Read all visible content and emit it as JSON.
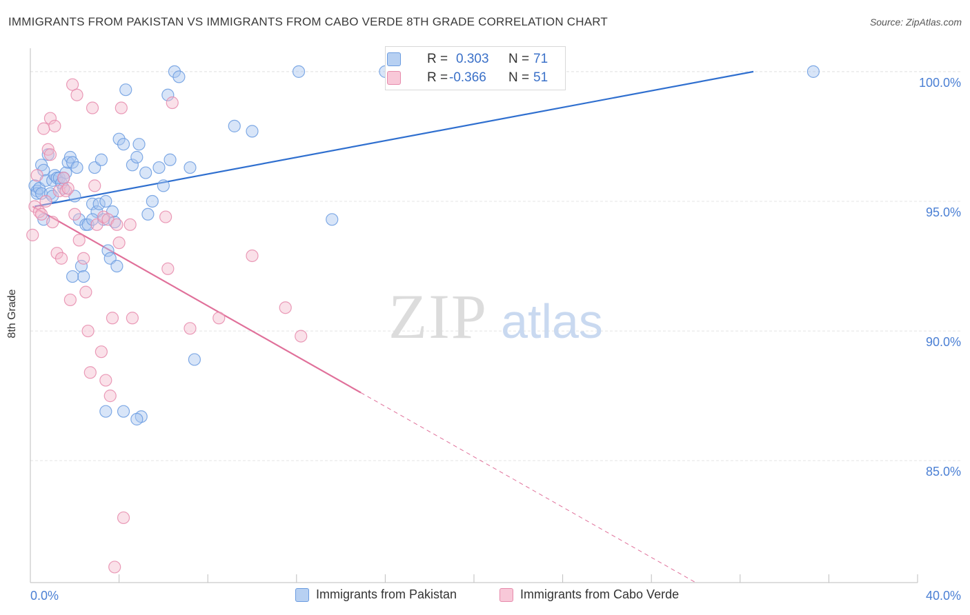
{
  "title": "IMMIGRANTS FROM PAKISTAN VS IMMIGRANTS FROM CABO VERDE 8TH GRADE CORRELATION CHART",
  "source": "Source: ZipAtlas.com",
  "watermark": {
    "zip": "ZIP",
    "atlas": "atlas"
  },
  "colors": {
    "blue": "#6a9be0",
    "blue_fill": "#a9c6f0",
    "pink": "#e68aab",
    "pink_fill": "#f5bccf",
    "blue_line": "#2f6fcf",
    "pink_line": "#e0709a",
    "tick_label": "#4a7fd4"
  },
  "legend": {
    "rows": [
      {
        "r_label": "R =",
        "r_value": "0.303",
        "n_label": "N =",
        "n_value": "71"
      },
      {
        "r_label": "R =",
        "r_value": "-0.366",
        "n_label": "N =",
        "n_value": "51"
      }
    ]
  },
  "bottom_legend": [
    "Immigrants from Pakistan",
    "Immigrants from Cabo Verde"
  ],
  "chart_data": {
    "type": "scatter",
    "title": "IMMIGRANTS FROM PAKISTAN VS IMMIGRANTS FROM CABO VERDE 8TH GRADE CORRELATION CHART",
    "xlabel": "",
    "ylabel": "8th Grade",
    "xlim": [
      0,
      40
    ],
    "ylim": [
      80.3,
      100.9
    ],
    "x_tick_labels": [
      "0.0%",
      "40.0%"
    ],
    "y_ticks": [
      85,
      90,
      95,
      100
    ],
    "y_tick_labels": [
      "85.0%",
      "90.0%",
      "95.0%",
      "100.0%"
    ],
    "series": [
      {
        "name": "Immigrants from Pakistan",
        "r": 0.303,
        "n": 71,
        "trend": {
          "x": [
            0.2,
            32.6
          ],
          "y": [
            94.8,
            100.0
          ],
          "solid_to": 32.6
        },
        "points": [
          [
            0.2,
            95.6
          ],
          [
            0.3,
            95.4
          ],
          [
            0.3,
            95.3
          ],
          [
            0.4,
            95.5
          ],
          [
            0.5,
            96.4
          ],
          [
            0.5,
            95.3
          ],
          [
            0.6,
            94.3
          ],
          [
            0.6,
            96.2
          ],
          [
            0.7,
            95.8
          ],
          [
            0.8,
            96.8
          ],
          [
            0.9,
            95.3
          ],
          [
            1.0,
            95.2
          ],
          [
            1.0,
            95.8
          ],
          [
            1.1,
            96.0
          ],
          [
            1.2,
            95.9
          ],
          [
            1.3,
            95.9
          ],
          [
            1.4,
            95.7
          ],
          [
            1.5,
            95.5
          ],
          [
            1.6,
            96.1
          ],
          [
            1.7,
            96.5
          ],
          [
            1.8,
            96.7
          ],
          [
            1.9,
            96.5
          ],
          [
            2.0,
            95.2
          ],
          [
            2.1,
            96.3
          ],
          [
            2.2,
            94.3
          ],
          [
            2.3,
            92.5
          ],
          [
            2.4,
            92.1
          ],
          [
            2.5,
            94.1
          ],
          [
            2.6,
            94.1
          ],
          [
            2.8,
            94.9
          ],
          [
            2.9,
            96.3
          ],
          [
            3.0,
            94.6
          ],
          [
            3.1,
            94.9
          ],
          [
            3.2,
            96.6
          ],
          [
            3.3,
            94.3
          ],
          [
            3.4,
            95.0
          ],
          [
            3.5,
            93.1
          ],
          [
            3.6,
            92.8
          ],
          [
            3.7,
            94.6
          ],
          [
            3.8,
            94.2
          ],
          [
            3.9,
            92.5
          ],
          [
            4.0,
            97.4
          ],
          [
            4.2,
            97.2
          ],
          [
            4.3,
            99.3
          ],
          [
            4.6,
            96.4
          ],
          [
            4.8,
            96.7
          ],
          [
            4.9,
            97.2
          ],
          [
            5.0,
            86.7
          ],
          [
            5.2,
            96.1
          ],
          [
            5.3,
            94.5
          ],
          [
            5.5,
            95.0
          ],
          [
            5.8,
            96.3
          ],
          [
            6.0,
            95.6
          ],
          [
            6.2,
            99.1
          ],
          [
            6.3,
            96.6
          ],
          [
            6.5,
            100.0
          ],
          [
            6.7,
            99.8
          ],
          [
            7.2,
            96.3
          ],
          [
            7.4,
            88.9
          ],
          [
            9.2,
            97.9
          ],
          [
            10.0,
            97.7
          ],
          [
            12.1,
            100.0
          ],
          [
            13.6,
            94.3
          ],
          [
            16.0,
            100.0
          ],
          [
            35.3,
            100.0
          ],
          [
            1.5,
            95.9
          ],
          [
            1.9,
            92.1
          ],
          [
            2.8,
            94.3
          ],
          [
            3.4,
            86.9
          ],
          [
            4.2,
            86.9
          ],
          [
            4.8,
            86.6
          ]
        ]
      },
      {
        "name": "Immigrants from Cabo Verde",
        "r": -0.366,
        "n": 51,
        "trend": {
          "x": [
            0.1,
            30.0
          ],
          "y": [
            94.8,
            80.3
          ],
          "solid_to": 14.9
        },
        "points": [
          [
            0.1,
            93.7
          ],
          [
            0.2,
            94.8
          ],
          [
            0.3,
            96.0
          ],
          [
            0.4,
            94.6
          ],
          [
            0.5,
            94.5
          ],
          [
            0.6,
            97.8
          ],
          [
            0.7,
            95.0
          ],
          [
            0.8,
            97.0
          ],
          [
            0.9,
            96.8
          ],
          [
            0.9,
            98.2
          ],
          [
            1.0,
            94.2
          ],
          [
            1.1,
            97.9
          ],
          [
            1.2,
            93.0
          ],
          [
            1.3,
            95.4
          ],
          [
            1.4,
            92.8
          ],
          [
            1.5,
            95.9
          ],
          [
            1.6,
            95.4
          ],
          [
            1.7,
            95.5
          ],
          [
            1.8,
            91.2
          ],
          [
            1.9,
            99.5
          ],
          [
            2.0,
            94.5
          ],
          [
            2.1,
            99.1
          ],
          [
            2.2,
            93.5
          ],
          [
            2.4,
            92.8
          ],
          [
            2.5,
            91.5
          ],
          [
            2.6,
            90.0
          ],
          [
            2.7,
            88.4
          ],
          [
            2.8,
            98.6
          ],
          [
            2.9,
            95.6
          ],
          [
            3.0,
            94.1
          ],
          [
            3.2,
            89.2
          ],
          [
            3.3,
            94.4
          ],
          [
            3.4,
            88.1
          ],
          [
            3.5,
            94.3
          ],
          [
            3.6,
            87.5
          ],
          [
            3.7,
            90.5
          ],
          [
            3.8,
            80.9
          ],
          [
            3.9,
            94.1
          ],
          [
            4.0,
            93.4
          ],
          [
            4.1,
            98.6
          ],
          [
            4.2,
            82.8
          ],
          [
            4.5,
            94.1
          ],
          [
            4.6,
            90.5
          ],
          [
            6.1,
            94.4
          ],
          [
            6.2,
            92.4
          ],
          [
            6.4,
            98.8
          ],
          [
            7.2,
            90.1
          ],
          [
            8.5,
            90.5
          ],
          [
            10.0,
            92.9
          ],
          [
            11.5,
            90.9
          ],
          [
            12.2,
            89.8
          ]
        ]
      }
    ]
  }
}
